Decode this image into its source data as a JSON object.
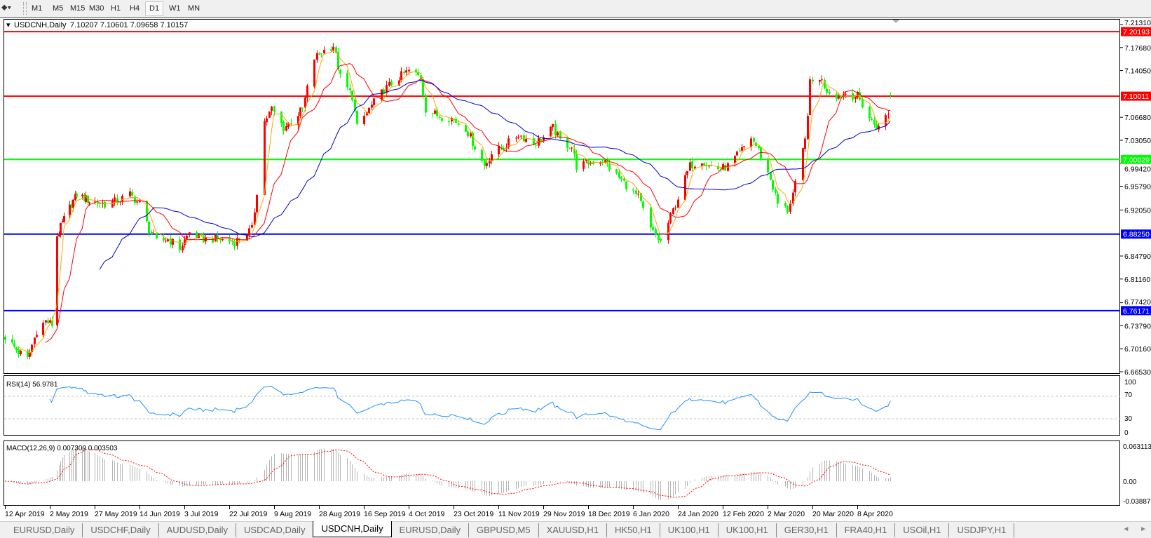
{
  "toolbar": {
    "timeframes": [
      "M1",
      "M5",
      "M15",
      "M30",
      "H1",
      "H4",
      "D1",
      "W1",
      "MN"
    ],
    "active": "D1"
  },
  "chart_header": {
    "symbol": "USDCNH,Daily",
    "ohlc": "7.10207 7.10601 7.09658 7.10157"
  },
  "colors": {
    "bull_candle": "#ff0000",
    "bear_candle": "#00ff00",
    "ma_fast": "#ffa500",
    "ma_mid": "#ff0000",
    "ma_slow": "#0000cd",
    "rsi_line": "#1e90ff",
    "macd_hist": "#b4b4b4",
    "macd_signal": "#ff0000"
  },
  "chart_data": {
    "type": "candlestick",
    "symbol": "USDCNH",
    "timeframe": "Daily",
    "last_bar": {
      "open": 7.10207,
      "high": 7.10601,
      "low": 7.09658,
      "close": 7.10157
    },
    "ylim": [
      6.6653,
      7.2131
    ],
    "price_ticks": [
      "7.21310",
      "7.17680",
      "7.14050",
      "7.06680",
      "7.03050",
      "6.99420",
      "6.95790",
      "6.92050",
      "6.84790",
      "6.81160",
      "6.77420",
      "6.73790",
      "6.70160",
      "6.66530"
    ],
    "x_tick_labels": [
      "12 Apr 2019",
      "2 May 2019",
      "27 May 2019",
      "14 Jun 2019",
      "3 Jul 2019",
      "22 Jul 2019",
      "9 Aug 2019",
      "28 Aug 2019",
      "16 Sep 2019",
      "4 Oct 2019",
      "23 Oct 2019",
      "11 Nov 2019",
      "29 Nov 2019",
      "18 Dec 2019",
      "6 Jan 2020",
      "24 Jan 2020",
      "12 Feb 2020",
      "2 Mar 2020",
      "20 Mar 2020",
      "8 Apr 2020"
    ],
    "horizontal_lines": [
      {
        "price": "7.20193",
        "color": "#ff0000"
      },
      {
        "price": "7.10011",
        "color": "#ff0000"
      },
      {
        "price": "7.00029",
        "color": "#00ff00"
      },
      {
        "price": "6.88250",
        "color": "#0000ff"
      },
      {
        "price": "6.76171",
        "color": "#0000ff"
      }
    ],
    "close_path": [
      [
        "2019-04-12",
        6.72
      ],
      [
        "2019-04-17",
        6.7
      ],
      [
        "2019-04-22",
        6.685
      ],
      [
        "2019-04-26",
        6.73
      ],
      [
        "2019-04-30",
        6.745
      ],
      [
        "2019-05-03",
        6.74
      ],
      [
        "2019-05-06",
        6.88
      ],
      [
        "2019-05-09",
        6.9
      ],
      [
        "2019-05-14",
        6.93
      ],
      [
        "2019-05-17",
        6.945
      ],
      [
        "2019-05-24",
        6.935
      ],
      [
        "2019-05-31",
        6.93
      ],
      [
        "2019-06-05",
        6.935
      ],
      [
        "2019-06-10",
        6.945
      ],
      [
        "2019-06-14",
        6.93
      ],
      [
        "2019-06-18",
        6.89
      ],
      [
        "2019-06-21",
        6.87
      ],
      [
        "2019-06-26",
        6.875
      ],
      [
        "2019-07-01",
        6.86
      ],
      [
        "2019-07-05",
        6.885
      ],
      [
        "2019-07-10",
        6.875
      ],
      [
        "2019-07-17",
        6.875
      ],
      [
        "2019-07-24",
        6.87
      ],
      [
        "2019-07-31",
        6.89
      ],
      [
        "2019-08-02",
        6.95
      ],
      [
        "2019-08-05",
        7.06
      ],
      [
        "2019-08-08",
        7.08
      ],
      [
        "2019-08-13",
        7.05
      ],
      [
        "2019-08-16",
        7.06
      ],
      [
        "2019-08-21",
        7.08
      ],
      [
        "2019-08-26",
        7.16
      ],
      [
        "2019-08-29",
        7.17
      ],
      [
        "2019-09-03",
        7.18
      ],
      [
        "2019-09-06",
        7.13
      ],
      [
        "2019-09-11",
        7.1
      ],
      [
        "2019-09-13",
        7.05
      ],
      [
        "2019-09-18",
        7.08
      ],
      [
        "2019-09-24",
        7.11
      ],
      [
        "2019-09-30",
        7.13
      ],
      [
        "2019-10-04",
        7.14
      ],
      [
        "2019-10-09",
        7.13
      ],
      [
        "2019-10-11",
        7.08
      ],
      [
        "2019-10-16",
        7.07
      ],
      [
        "2019-10-22",
        7.065
      ],
      [
        "2019-10-28",
        7.05
      ],
      [
        "2019-11-01",
        7.02
      ],
      [
        "2019-11-05",
        6.99
      ],
      [
        "2019-11-08",
        7.01
      ],
      [
        "2019-11-13",
        7.02
      ],
      [
        "2019-11-19",
        7.04
      ],
      [
        "2019-11-25",
        7.025
      ],
      [
        "2019-11-29",
        7.035
      ],
      [
        "2019-12-03",
        7.05
      ],
      [
        "2019-12-06",
        7.03
      ],
      [
        "2019-12-11",
        7.02
      ],
      [
        "2019-12-13",
        6.99
      ],
      [
        "2019-12-18",
        6.995
      ],
      [
        "2019-12-24",
        7.0
      ],
      [
        "2019-12-30",
        6.975
      ],
      [
        "2020-01-03",
        6.96
      ],
      [
        "2020-01-08",
        6.94
      ],
      [
        "2020-01-13",
        6.89
      ],
      [
        "2020-01-17",
        6.87
      ],
      [
        "2020-01-21",
        6.91
      ],
      [
        "2020-01-24",
        6.94
      ],
      [
        "2020-01-29",
        6.99
      ],
      [
        "2020-02-03",
        7.0
      ],
      [
        "2020-02-06",
        6.99
      ],
      [
        "2020-02-11",
        6.985
      ],
      [
        "2020-02-14",
        6.99
      ],
      [
        "2020-02-19",
        7.01
      ],
      [
        "2020-02-24",
        7.035
      ],
      [
        "2020-02-27",
        7.015
      ],
      [
        "2020-03-03",
        6.97
      ],
      [
        "2020-03-06",
        6.93
      ],
      [
        "2020-03-10",
        6.92
      ],
      [
        "2020-03-13",
        6.96
      ],
      [
        "2020-03-17",
        7.03
      ],
      [
        "2020-03-19",
        7.12
      ],
      [
        "2020-03-23",
        7.13
      ],
      [
        "2020-03-26",
        7.11
      ],
      [
        "2020-03-31",
        7.1
      ],
      [
        "2020-04-03",
        7.105
      ],
      [
        "2020-04-08",
        7.1
      ],
      [
        "2020-04-14",
        7.06
      ],
      [
        "2020-04-17",
        7.05
      ],
      [
        "2020-04-21",
        7.075
      ],
      [
        "2020-04-22",
        7.10157
      ]
    ],
    "rsi": {
      "label": "RSI(14) 56.9781",
      "levels": [
        70,
        30
      ],
      "ticks": [
        "100",
        "70",
        "30",
        "0"
      ]
    },
    "macd": {
      "label": "MACD(12,26,9) 0.007309 0.003503",
      "ticks": [
        "0.063113",
        "0.00",
        "-0.038872"
      ],
      "range": [
        -0.038872,
        0.063113
      ]
    }
  },
  "tabs": [
    "EURUSD,Daily",
    "USDCHF,Daily",
    "AUDUSD,Daily",
    "USDCAD,Daily",
    "USDCNH,Daily",
    "EURUSD,Daily",
    "GBPUSD,M5",
    "XAUUSD,H1",
    "HK50,H1",
    "UK100,H1",
    "UK100,H1",
    "GER30,H1",
    "FRA40,H1",
    "USOil,H1",
    "USDJPY,H1"
  ],
  "active_tab": "USDCNH,Daily",
  "scroll": {
    "left": "◄",
    "right": "►"
  }
}
